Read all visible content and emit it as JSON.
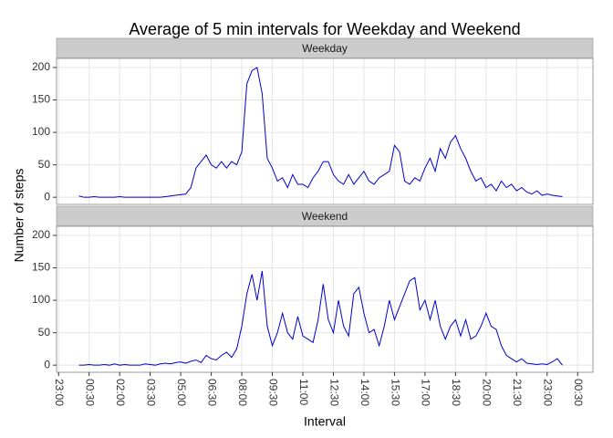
{
  "chart_data": {
    "type": "line",
    "title": "Average of 5 min intervals for Weekday and Weekend",
    "xlabel": "Interval",
    "ylabel": "Number of steps",
    "facets": true,
    "grid": true,
    "x": [
      0,
      0.25,
      0.5,
      0.75,
      1,
      1.25,
      1.5,
      1.75,
      2,
      2.25,
      2.5,
      2.75,
      3,
      3.25,
      3.5,
      3.75,
      4,
      4.25,
      4.5,
      4.75,
      5,
      5.25,
      5.5,
      5.75,
      6,
      6.25,
      6.5,
      6.75,
      7,
      7.25,
      7.5,
      7.75,
      8,
      8.25,
      8.5,
      8.75,
      9,
      9.25,
      9.5,
      9.75,
      10,
      10.25,
      10.5,
      10.75,
      11,
      11.25,
      11.5,
      11.75,
      12,
      12.25,
      12.5,
      12.75,
      13,
      13.25,
      13.5,
      13.75,
      14,
      14.25,
      14.5,
      14.75,
      15,
      15.25,
      15.5,
      15.75,
      16,
      16.25,
      16.5,
      16.75,
      17,
      17.25,
      17.5,
      17.75,
      18,
      18.25,
      18.5,
      18.75,
      19,
      19.25,
      19.5,
      19.75,
      20,
      20.25,
      20.5,
      20.75,
      21,
      21.25,
      21.5,
      21.75,
      22,
      22.25,
      22.5,
      22.75,
      23,
      23.25,
      23.5,
      23.75
    ],
    "series": [
      {
        "name": "Weekday",
        "color": "#0000cc",
        "values": [
          2,
          0,
          0,
          1,
          0,
          0,
          0,
          0,
          1,
          0,
          0,
          0,
          0,
          0,
          0,
          0,
          0,
          1,
          2,
          3,
          4,
          5,
          15,
          45,
          55,
          65,
          50,
          45,
          55,
          45,
          55,
          50,
          70,
          175,
          195,
          200,
          160,
          60,
          45,
          25,
          30,
          15,
          35,
          20,
          20,
          15,
          30,
          40,
          55,
          55,
          35,
          25,
          20,
          35,
          20,
          30,
          40,
          25,
          20,
          30,
          35,
          40,
          80,
          70,
          25,
          20,
          30,
          25,
          45,
          60,
          40,
          75,
          60,
          85,
          95,
          75,
          60,
          40,
          25,
          30,
          15,
          20,
          10,
          25,
          15,
          20,
          10,
          15,
          8,
          5,
          10,
          3,
          5,
          3,
          2,
          1
        ]
      },
      {
        "name": "Weekend",
        "color": "#0000cc",
        "values": [
          0,
          0,
          1,
          0,
          0,
          1,
          0,
          2,
          0,
          1,
          0,
          0,
          0,
          2,
          1,
          0,
          2,
          3,
          2,
          4,
          5,
          3,
          6,
          8,
          4,
          15,
          10,
          8,
          15,
          20,
          12,
          25,
          60,
          110,
          140,
          100,
          145,
          60,
          30,
          50,
          80,
          50,
          40,
          75,
          45,
          40,
          35,
          70,
          125,
          70,
          50,
          100,
          60,
          45,
          110,
          120,
          80,
          50,
          55,
          30,
          60,
          100,
          70,
          90,
          110,
          130,
          135,
          85,
          100,
          70,
          100,
          60,
          40,
          60,
          70,
          45,
          70,
          40,
          45,
          60,
          80,
          60,
          55,
          30,
          15,
          10,
          5,
          10,
          3,
          2,
          1,
          2,
          1,
          5,
          10,
          0
        ]
      }
    ],
    "xlim": [
      -1.1,
      25.25
    ],
    "xticks": [
      {
        "value": -1,
        "label": "23:00"
      },
      {
        "value": 0.5,
        "label": "00:30"
      },
      {
        "value": 2,
        "label": "02:00"
      },
      {
        "value": 3.5,
        "label": "03:30"
      },
      {
        "value": 5,
        "label": "05:00"
      },
      {
        "value": 6.5,
        "label": "06:30"
      },
      {
        "value": 8,
        "label": "08:00"
      },
      {
        "value": 9.5,
        "label": "09:30"
      },
      {
        "value": 11,
        "label": "11:00"
      },
      {
        "value": 12.5,
        "label": "12:30"
      },
      {
        "value": 14,
        "label": "14:00"
      },
      {
        "value": 15.5,
        "label": "15:30"
      },
      {
        "value": 17,
        "label": "17:00"
      },
      {
        "value": 18.5,
        "label": "18:30"
      },
      {
        "value": 20,
        "label": "20:00"
      },
      {
        "value": 21.5,
        "label": "21:30"
      },
      {
        "value": 23,
        "label": "23:00"
      },
      {
        "value": 24.5,
        "label": "00:30"
      }
    ],
    "ylim": [
      -11,
      214
    ],
    "yticks": [
      0,
      50,
      100,
      150,
      200
    ]
  }
}
